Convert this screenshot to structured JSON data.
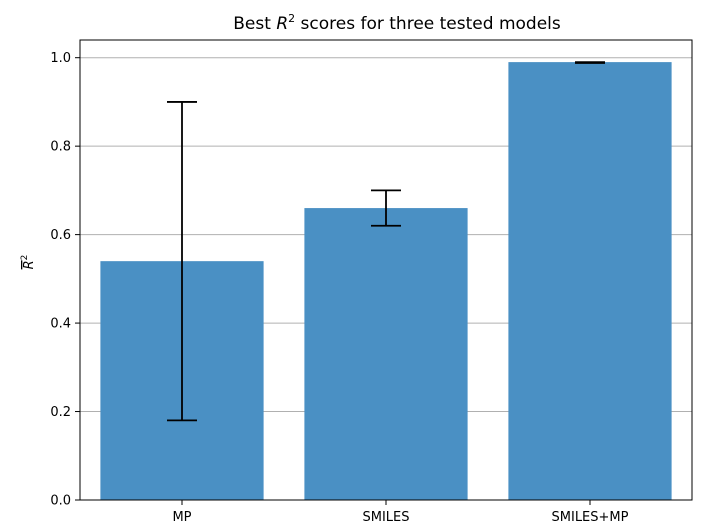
{
  "chart_data": {
    "type": "bar",
    "title": "Best R² scores for three tested models",
    "title_parts": {
      "prefix": "Best ",
      "symbol": "R",
      "superscript": "2",
      "suffix": " scores for three tested models"
    },
    "xlabel": "",
    "ylabel": "R²",
    "ylabel_parts": {
      "symbol": "R",
      "superscript": "2",
      "overline": true
    },
    "categories": [
      "MP",
      "SMILES",
      "SMILES+MP"
    ],
    "values": [
      0.54,
      0.66,
      0.99
    ],
    "error_low": [
      0.18,
      0.62,
      0.988
    ],
    "error_high": [
      0.9,
      0.7,
      0.99
    ],
    "ylim": [
      0.0,
      1.04
    ],
    "yticks": [
      0.0,
      0.2,
      0.4,
      0.6,
      0.8,
      1.0
    ],
    "ytick_labels": [
      "0.0",
      "0.2",
      "0.4",
      "0.6",
      "0.8",
      "1.0"
    ],
    "grid": "horizontal",
    "colors": {
      "bar": "#4a90c4",
      "grid": "#b0b0b0",
      "error": "#000000",
      "axis": "#000000"
    }
  }
}
